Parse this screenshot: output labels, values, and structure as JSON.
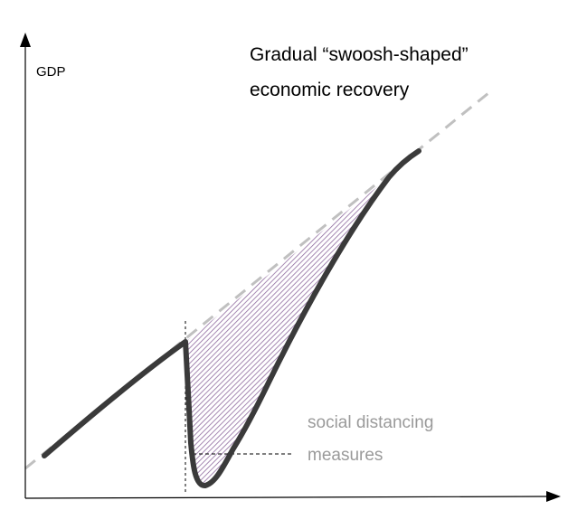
{
  "title": {
    "line1": "Gradual “swoosh-shaped”",
    "line2": "economic recovery"
  },
  "axes": {
    "ylabel": "GDP"
  },
  "annotation": {
    "line1": "social distancing",
    "line2": "measures"
  },
  "colors": {
    "curve": "#3a3a3a",
    "trend": "#c0c0c0",
    "hatch": "#8e6a9e",
    "annotation_text": "#9a9a9a",
    "axis": "#000000"
  }
}
